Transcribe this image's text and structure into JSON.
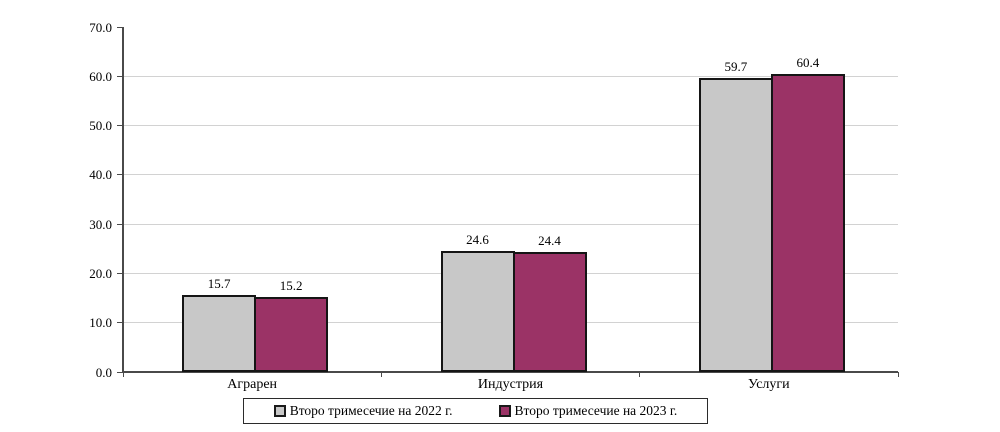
{
  "chart_data": {
    "type": "bar",
    "title": "",
    "categories": [
      "Аграрен",
      "Индустрия",
      "Услуги"
    ],
    "series": [
      {
        "name": "Второ тримесечие на 2022 г.",
        "color": "#c8c8c8",
        "border_color": "#151515",
        "values": [
          15.7,
          24.6,
          59.7
        ]
      },
      {
        "name": "Второ тримесечие на 2023 г.",
        "color": "#9b3366",
        "border_color": "#151515",
        "values": [
          15.2,
          24.4,
          60.4
        ]
      }
    ],
    "data_labels": [
      [
        "15.7",
        "24.6",
        "59.7"
      ],
      [
        "15.2",
        "24.4",
        "60.4"
      ]
    ],
    "xlabel": "",
    "ylabel": "",
    "ylim": [
      0,
      70
    ],
    "ytick_step": 10,
    "ytick_labels": [
      "0.0",
      "10.0",
      "20.0",
      "30.0",
      "40.0",
      "50.0",
      "60.0",
      "70.0"
    ],
    "grid": true,
    "legend_position": "bottom"
  },
  "colors": {
    "background": "#ffffff",
    "gridline": "#d2d2d2",
    "axis": "#4a4a4a",
    "text": "#000000",
    "legend_border": "#2b2b2b",
    "series_2022": "#c8c8c8",
    "series_2023": "#9b3366"
  }
}
